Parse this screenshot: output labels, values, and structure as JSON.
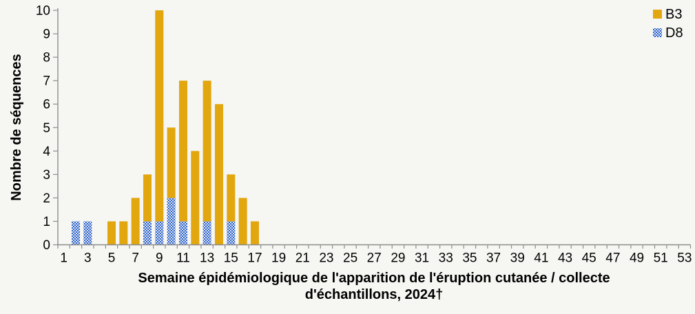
{
  "colors": {
    "background": "#f6f6f3",
    "axis": "#8c8c8c",
    "text": "#000000",
    "b3_gold": "#e2a60e",
    "d8_blue": "#2f62c6",
    "d8_dot": "#dbe5f7"
  },
  "chart_data": {
    "type": "bar",
    "stacked": true,
    "title": "",
    "xlabel": "Semaine épidémiologique de l'apparition de l'éruption cutanée / collecte d'échantillons, 2024†",
    "xlabel_line1": "Semaine épidémiologique de l'apparition de l'éruption cutanée / collecte",
    "xlabel_line2": "d'échantillons, 2024†",
    "ylabel": "Nombre de séquences",
    "ylim": [
      0,
      10
    ],
    "y_ticks": [
      0,
      1,
      2,
      3,
      4,
      5,
      6,
      7,
      8,
      9,
      10
    ],
    "grid": false,
    "legend_position": "top-right",
    "legend_items": [
      "B3",
      "D8"
    ],
    "stack_order_bottom_to_top": [
      "D8",
      "B3"
    ],
    "categories": [
      1,
      2,
      3,
      4,
      5,
      6,
      7,
      8,
      9,
      10,
      11,
      12,
      13,
      14,
      15,
      16,
      17,
      18,
      19,
      20,
      21,
      22,
      23,
      24,
      25,
      26,
      27,
      28,
      29,
      30,
      31,
      32,
      33,
      34,
      35,
      36,
      37,
      38,
      39,
      40,
      41,
      42,
      43,
      44,
      45,
      46,
      47,
      48,
      49,
      50,
      51,
      52,
      53
    ],
    "x_tick_labels": [
      1,
      3,
      5,
      7,
      9,
      11,
      13,
      15,
      17,
      19,
      21,
      23,
      25,
      27,
      29,
      31,
      33,
      35,
      37,
      39,
      41,
      43,
      45,
      47,
      49,
      51,
      53
    ],
    "series": [
      {
        "name": "D8",
        "fill": "pattern-dotted-blue",
        "values": [
          0,
          1,
          1,
          0,
          0,
          0,
          0,
          1,
          1,
          2,
          1,
          0,
          1,
          0,
          1,
          0,
          0,
          0,
          0,
          0,
          0,
          0,
          0,
          0,
          0,
          0,
          0,
          0,
          0,
          0,
          0,
          0,
          0,
          0,
          0,
          0,
          0,
          0,
          0,
          0,
          0,
          0,
          0,
          0,
          0,
          0,
          0,
          0,
          0,
          0,
          0,
          0,
          0
        ]
      },
      {
        "name": "B3",
        "fill": "solid-gold",
        "values": [
          0,
          0,
          0,
          0,
          1,
          1,
          2,
          2,
          9,
          3,
          6,
          4,
          6,
          6,
          2,
          2,
          1,
          0,
          0,
          0,
          0,
          0,
          0,
          0,
          0,
          0,
          0,
          0,
          0,
          0,
          0,
          0,
          0,
          0,
          0,
          0,
          0,
          0,
          0,
          0,
          0,
          0,
          0,
          0,
          0,
          0,
          0,
          0,
          0,
          0,
          0,
          0,
          0
        ]
      }
    ],
    "stacked_totals": [
      0,
      1,
      1,
      0,
      1,
      1,
      2,
      3,
      10,
      5,
      7,
      4,
      7,
      6,
      3,
      2,
      1,
      0,
      0,
      0,
      0,
      0,
      0,
      0,
      0,
      0,
      0,
      0,
      0,
      0,
      0,
      0,
      0,
      0,
      0,
      0,
      0,
      0,
      0,
      0,
      0,
      0,
      0,
      0,
      0,
      0,
      0,
      0,
      0,
      0,
      0,
      0,
      0
    ]
  }
}
